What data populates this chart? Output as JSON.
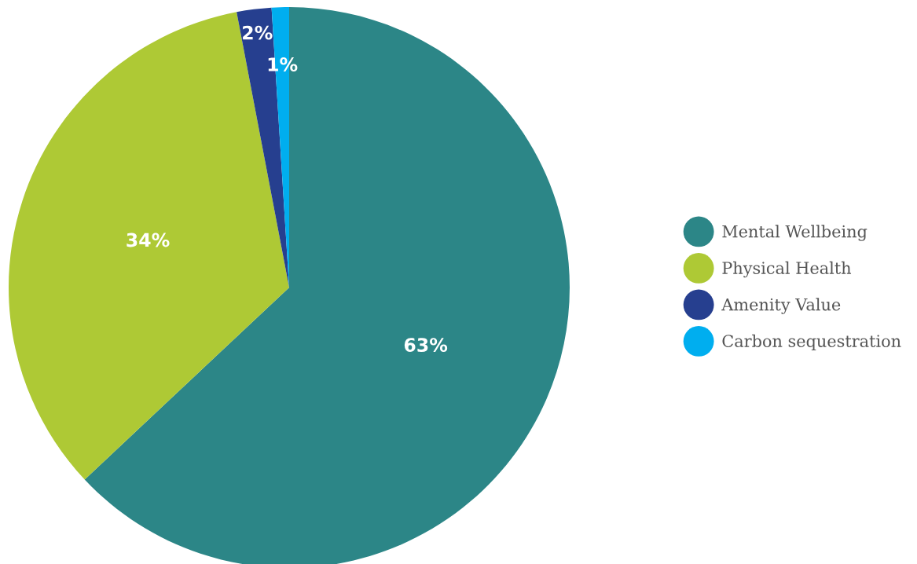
{
  "chart_data": {
    "type": "pie",
    "categories": [
      "Mental Wellbeing",
      "Physical Health",
      "Amenity Value",
      "Carbon sequestration"
    ],
    "values": [
      63,
      34,
      2,
      1
    ],
    "value_labels": [
      "63%",
      "34%",
      "2%",
      "1%"
    ],
    "colors": [
      "#2c8687",
      "#aec935",
      "#263f8f",
      "#00aeef"
    ],
    "legend": "right"
  }
}
